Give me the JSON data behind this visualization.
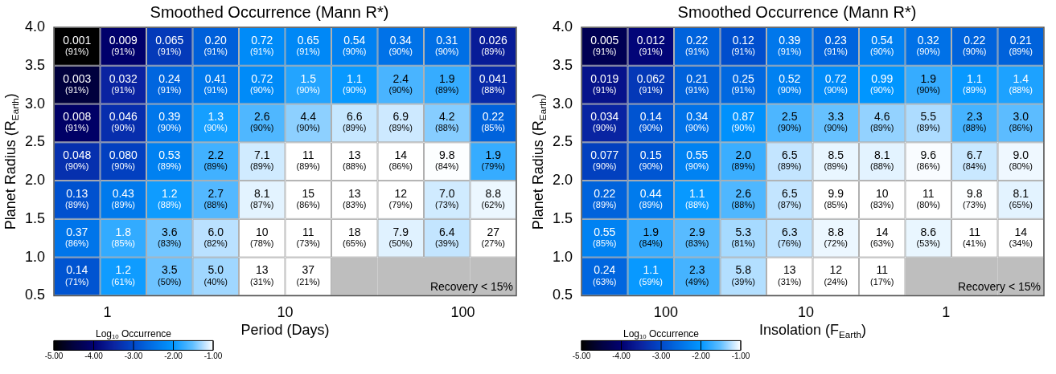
{
  "chart_data": [
    {
      "type": "heatmap",
      "title": "Smoothed Occurrence (Mann R*)",
      "xlabel": "Period (Days)",
      "ylabel": "Planet Radius (R$_{Earth}$)",
      "clabel": "Log$_{10}$ Occurrence",
      "log": "x",
      "xlim": [
        0.5,
        200
      ],
      "xticks": [
        1,
        10,
        100
      ],
      "ylim": [
        0.5,
        4.0
      ],
      "yticks": [
        {
          "value": 0.5,
          "label": "0.5"
        },
        {
          "value": 1,
          "label": "1.0"
        },
        {
          "value": 1.5,
          "label": "1.5"
        },
        {
          "value": 2,
          "label": "2.0"
        },
        {
          "value": 2.5,
          "label": "2.5"
        },
        {
          "value": 3,
          "label": "3.0"
        },
        {
          "value": 3.5,
          "label": "3.5"
        },
        {
          "value": 4,
          "label": "4.0"
        }
      ],
      "clim": [
        -5,
        -1
      ],
      "cticks": [
        {
          "value": -5,
          "label": "-5.00"
        },
        {
          "value": -4,
          "label": "-4.00"
        },
        {
          "value": -3,
          "label": "-3.00"
        },
        {
          "value": -2,
          "label": "-2.00"
        },
        {
          "value": -1,
          "label": "-1.00"
        }
      ],
      "cells": [
        [
          -5.0,
          -4.05,
          -3.19,
          -2.7,
          -2.14,
          -2.19,
          -2.27,
          -2.47,
          -2.51,
          -3.59
        ],
        [
          -4.52,
          -3.49,
          -2.62,
          -2.39,
          -2.14,
          -1.82,
          -1.96,
          -1.62,
          -1.72,
          -3.39
        ],
        [
          -4.1,
          -3.34,
          -2.41,
          -1.89,
          -1.59,
          -1.36,
          -1.18,
          -1.16,
          -1.38,
          -2.66
        ],
        [
          -3.32,
          -3.1,
          -2.28,
          -1.66,
          -1.15,
          -0.96,
          -0.89,
          -0.85,
          -1.01,
          -1.72
        ],
        [
          -2.89,
          -2.37,
          -1.92,
          -1.57,
          -1.09,
          -0.82,
          -0.89,
          -0.92,
          -1.15,
          -1.06
        ],
        [
          -2.43,
          -1.74,
          -1.44,
          -1.22,
          -1.0,
          -0.96,
          -0.74,
          -1.1,
          -1.19,
          -0.57
        ],
        [
          -2.85,
          -1.92,
          -1.46,
          -1.3,
          -0.89,
          -0.43,
          null,
          null,
          null,
          null
        ]
      ],
      "cell_labels": [
        [
          "0.001\n(91%)",
          "0.009\n(91%)",
          "0.065\n(91%)",
          "0.20\n(91%)",
          "0.72\n(91%)",
          "0.65\n(91%)",
          "0.54\n(90%)",
          "0.34\n(90%)",
          "0.31\n(90%)",
          "0.026\n(89%)"
        ],
        [
          "0.003\n(91%)",
          "0.032\n(91%)",
          "0.24\n(91%)",
          "0.41\n(91%)",
          "0.72\n(90%)",
          "1.5\n(90%)",
          "1.1\n(90%)",
          "2.4\n(90%)",
          "1.9\n(89%)",
          "0.041\n(88%)"
        ],
        [
          "0.008\n(91%)",
          "0.046\n(90%)",
          "0.39\n(90%)",
          "1.3\n(90%)",
          "2.6\n(90%)",
          "4.4\n(90%)",
          "6.6\n(89%)",
          "6.9\n(89%)",
          "4.2\n(88%)",
          "0.22\n(85%)"
        ],
        [
          "0.048\n(90%)",
          "0.080\n(90%)",
          "0.53\n(89%)",
          "2.2\n(89%)",
          "7.1\n(89%)",
          "11\n(89%)",
          "13\n(88%)",
          "14\n(86%)",
          "9.8\n(84%)",
          "1.9\n(79%)"
        ],
        [
          "0.13\n(89%)",
          "0.43\n(89%)",
          "1.2\n(88%)",
          "2.7\n(88%)",
          "8.1\n(87%)",
          "15\n(86%)",
          "13\n(83%)",
          "12\n(79%)",
          "7.0\n(73%)",
          "8.8\n(62%)"
        ],
        [
          "0.37\n(86%)",
          "1.8\n(85%)",
          "3.6\n(83%)",
          "6.0\n(82%)",
          "10\n(78%)",
          "11\n(73%)",
          "18\n(65%)",
          "7.9\n(50%)",
          "6.4\n(39%)",
          "27\n(27%)"
        ],
        [
          "0.14\n(71%)",
          "1.2\n(61%)",
          "3.5\n(50%)",
          "5.0\n(40%)",
          "13\n(31%)",
          "37\n(21%)",
          null,
          null,
          null,
          null
        ]
      ],
      "annotations": [
        "Recovery < 15%"
      ]
    },
    {
      "type": "heatmap",
      "title": "Smoothed Occurrence (Mann R*)",
      "xlabel": "Insolation (F$_{Earth}$)",
      "ylabel": "Planet Radius (R$_{Earth}$)",
      "clabel": "Log$_{10}$ Occurrence",
      "log": "x",
      "xlim": [
        400,
        0.2
      ],
      "xticks": [
        100,
        10,
        1
      ],
      "ylim": [
        0.5,
        4.0
      ],
      "yticks": [
        {
          "value": 0.5,
          "label": "0.5"
        },
        {
          "value": 1,
          "label": "1.0"
        },
        {
          "value": 1.5,
          "label": "1.5"
        },
        {
          "value": 2,
          "label": "2.0"
        },
        {
          "value": 2.5,
          "label": "2.5"
        },
        {
          "value": 3,
          "label": "3.0"
        },
        {
          "value": 3.5,
          "label": "3.5"
        },
        {
          "value": 4,
          "label": "4.0"
        }
      ],
      "clim": [
        -5,
        -1
      ],
      "cticks": [
        {
          "value": -5,
          "label": "-5.00"
        },
        {
          "value": -4,
          "label": "-4.00"
        },
        {
          "value": -3,
          "label": "-3.00"
        },
        {
          "value": -2,
          "label": "-2.00"
        },
        {
          "value": -1,
          "label": "-1.00"
        }
      ],
      "cells": [
        [
          -4.3,
          -3.92,
          -2.66,
          -2.92,
          -2.41,
          -2.64,
          -2.27,
          -2.49,
          -2.66,
          -2.68
        ],
        [
          -3.72,
          -3.21,
          -2.68,
          -2.6,
          -2.28,
          -2.14,
          -2.0,
          -1.72,
          -1.96,
          -1.85
        ],
        [
          -3.47,
          -2.85,
          -2.47,
          -2.06,
          -1.6,
          -1.48,
          -1.34,
          -1.26,
          -1.64,
          -1.52
        ],
        [
          -3.11,
          -2.82,
          -2.26,
          -1.7,
          -1.19,
          -1.07,
          -1.09,
          -1.02,
          -1.17,
          -1.05
        ],
        [
          -2.66,
          -2.36,
          -1.96,
          -1.59,
          -1.19,
          -1.0,
          -1.0,
          -0.96,
          -1.01,
          -1.09
        ],
        [
          -2.26,
          -1.72,
          -1.54,
          -1.28,
          -1.2,
          -1.06,
          -0.85,
          -1.07,
          -0.96,
          -0.85
        ],
        [
          -2.62,
          -1.96,
          -1.64,
          -1.24,
          -0.89,
          -0.92,
          -0.96,
          null,
          null,
          null
        ]
      ],
      "cell_labels": [
        [
          "0.005\n(91%)",
          "0.012\n(91%)",
          "0.22\n(91%)",
          "0.12\n(91%)",
          "0.39\n(91%)",
          "0.23\n(91%)",
          "0.54\n(90%)",
          "0.32\n(90%)",
          "0.22\n(90%)",
          "0.21\n(89%)"
        ],
        [
          "0.019\n(91%)",
          "0.062\n(91%)",
          "0.21\n(91%)",
          "0.25\n(91%)",
          "0.52\n(90%)",
          "0.72\n(90%)",
          "0.99\n(90%)",
          "1.9\n(90%)",
          "1.1\n(89%)",
          "1.4\n(88%)"
        ],
        [
          "0.034\n(90%)",
          "0.14\n(90%)",
          "0.34\n(90%)",
          "0.87\n(90%)",
          "2.5\n(90%)",
          "3.3\n(90%)",
          "4.6\n(89%)",
          "5.5\n(89%)",
          "2.3\n(88%)",
          "3.0\n(86%)"
        ],
        [
          "0.077\n(90%)",
          "0.15\n(90%)",
          "0.55\n(90%)",
          "2.0\n(89%)",
          "6.5\n(89%)",
          "8.5\n(89%)",
          "8.1\n(88%)",
          "9.6\n(86%)",
          "6.7\n(84%)",
          "9.0\n(80%)"
        ],
        [
          "0.22\n(89%)",
          "0.44\n(89%)",
          "1.1\n(88%)",
          "2.6\n(88%)",
          "6.5\n(87%)",
          "9.9\n(85%)",
          "10\n(83%)",
          "11\n(80%)",
          "9.8\n(73%)",
          "8.1\n(65%)"
        ],
        [
          "0.55\n(85%)",
          "1.9\n(84%)",
          "2.9\n(83%)",
          "5.3\n(81%)",
          "6.3\n(76%)",
          "8.8\n(72%)",
          "14\n(63%)",
          "8.6\n(53%)",
          "11\n(41%)",
          "14\n(34%)"
        ],
        [
          "0.24\n(63%)",
          "1.1\n(59%)",
          "2.3\n(49%)",
          "5.8\n(39%)",
          "13\n(31%)",
          "12\n(24%)",
          "11\n(17%)",
          null,
          null,
          null
        ]
      ],
      "annotations": [
        "Recovery < 15%"
      ]
    }
  ]
}
